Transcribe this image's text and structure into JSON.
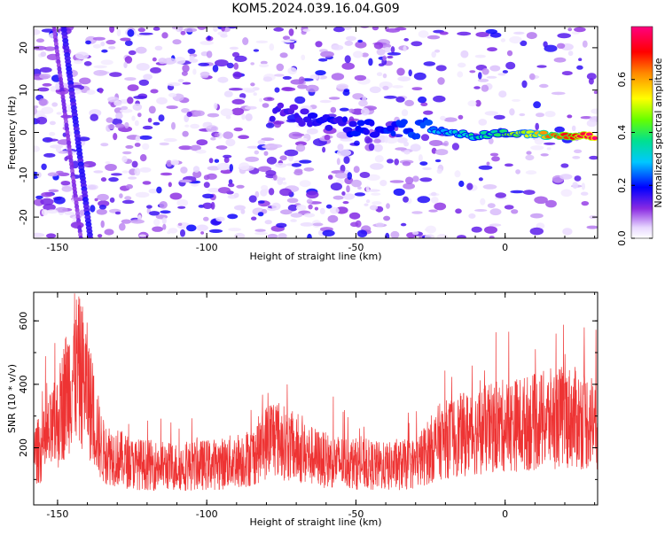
{
  "title": "KOM5.2024.039.16.04.G09",
  "chart_data": [
    {
      "type": "heatmap",
      "xlabel": "Height of straight line (km)",
      "ylabel": "Frequency (Hz)",
      "xlim": [
        -158,
        31
      ],
      "ylim": [
        -25,
        25
      ],
      "xticks": [
        -150,
        -100,
        -50,
        0
      ],
      "yticks": [
        -20,
        -10,
        0,
        10,
        20
      ],
      "colorbar": {
        "label": "Normalized spectral amplitude",
        "range": [
          0.0,
          0.8
        ],
        "ticks": [
          0.0,
          0.2,
          0.4,
          0.6
        ]
      },
      "features": [
        {
          "name": "left-streak",
          "x_at_top": -148,
          "x_at_bottom": -139,
          "amplitude": 0.25
        },
        {
          "name": "ridge",
          "points": [
            [
              -75,
              5
            ],
            [
              -50,
              1
            ],
            [
              -25,
              1
            ],
            [
              -10,
              -1
            ],
            [
              0,
              0
            ],
            [
              10,
              -0.5
            ],
            [
              30,
              -1
            ]
          ],
          "peak_amplitude": 0.75
        }
      ]
    },
    {
      "type": "line",
      "xlabel": "Height of straight line (km)",
      "ylabel": "SNR (10 * v/v)",
      "xlim": [
        -158,
        31
      ],
      "ylim": [
        20,
        690
      ],
      "xticks": [
        -150,
        -100,
        -50,
        0
      ],
      "yticks": [
        200,
        400,
        600
      ],
      "color": "#ee3333",
      "envelope": {
        "x": [
          -158,
          -155,
          -150,
          -147,
          -144,
          -141,
          -138,
          -135,
          -125,
          -110,
          -95,
          -85,
          -78,
          -70,
          -60,
          -50,
          -40,
          -30,
          -22,
          -15,
          -5,
          0,
          10,
          20,
          31
        ],
        "mean": [
          180,
          200,
          280,
          380,
          450,
          420,
          300,
          190,
          150,
          140,
          150,
          170,
          240,
          190,
          160,
          150,
          140,
          150,
          220,
          240,
          260,
          270,
          280,
          300,
          280
        ]
      }
    }
  ]
}
